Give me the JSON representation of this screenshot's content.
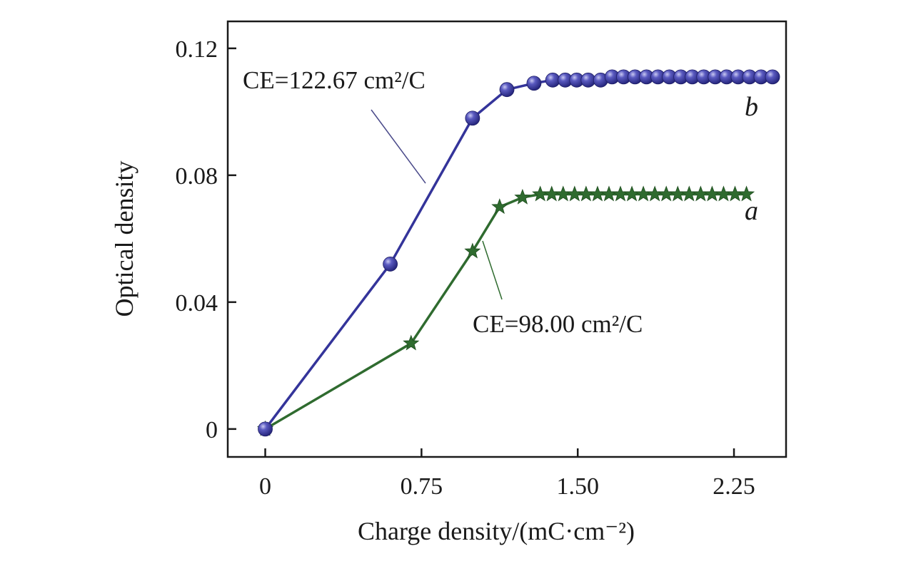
{
  "chart_data": {
    "type": "line",
    "xlabel": "Charge density/(mC·cm⁻²)",
    "ylabel": "Optical density",
    "xlim": [
      -0.18,
      2.5
    ],
    "ylim": [
      -0.0088,
      0.1285
    ],
    "x_ticks": [
      0,
      0.75,
      1.5,
      2.25
    ],
    "x_tick_labels": [
      "0",
      "0.75",
      "1.50",
      "2.25"
    ],
    "y_ticks": [
      0,
      0.04,
      0.08,
      0.12
    ],
    "y_tick_labels": [
      "0",
      "0.04",
      "0.08",
      "0.12"
    ],
    "grid": false,
    "colors": {
      "a": "#2f6b2f",
      "b": "#34349a",
      "axis": "#1a1a1a",
      "leader": "#4a4a8a"
    },
    "series": [
      {
        "name": "a",
        "marker": "star",
        "annotation": "CE=98.00 cm²/C",
        "x": [
          0,
          0.7,
          0.995,
          1.125,
          1.235,
          1.32,
          1.375,
          1.43,
          1.485,
          1.54,
          1.595,
          1.65,
          1.705,
          1.76,
          1.815,
          1.87,
          1.925,
          1.98,
          2.035,
          2.09,
          2.145,
          2.2,
          2.255,
          2.31
        ],
        "y": [
          0,
          0.027,
          0.056,
          0.07,
          0.073,
          0.074,
          0.074,
          0.074,
          0.074,
          0.074,
          0.074,
          0.074,
          0.074,
          0.074,
          0.074,
          0.074,
          0.074,
          0.074,
          0.074,
          0.074,
          0.074,
          0.074,
          0.074,
          0.074
        ]
      },
      {
        "name": "b",
        "marker": "circle",
        "annotation": "CE=122.67 cm²/C",
        "x": [
          0,
          0.6,
          0.995,
          1.16,
          1.29,
          1.38,
          1.44,
          1.495,
          1.55,
          1.61,
          1.665,
          1.72,
          1.775,
          1.83,
          1.885,
          1.94,
          1.995,
          2.05,
          2.105,
          2.16,
          2.215,
          2.27,
          2.325,
          2.38,
          2.435
        ],
        "y": [
          0,
          0.052,
          0.098,
          0.107,
          0.109,
          0.11,
          0.11,
          0.11,
          0.11,
          0.11,
          0.111,
          0.111,
          0.111,
          0.111,
          0.111,
          0.111,
          0.111,
          0.111,
          0.111,
          0.111,
          0.111,
          0.111,
          0.111,
          0.111,
          0.111
        ]
      }
    ]
  }
}
